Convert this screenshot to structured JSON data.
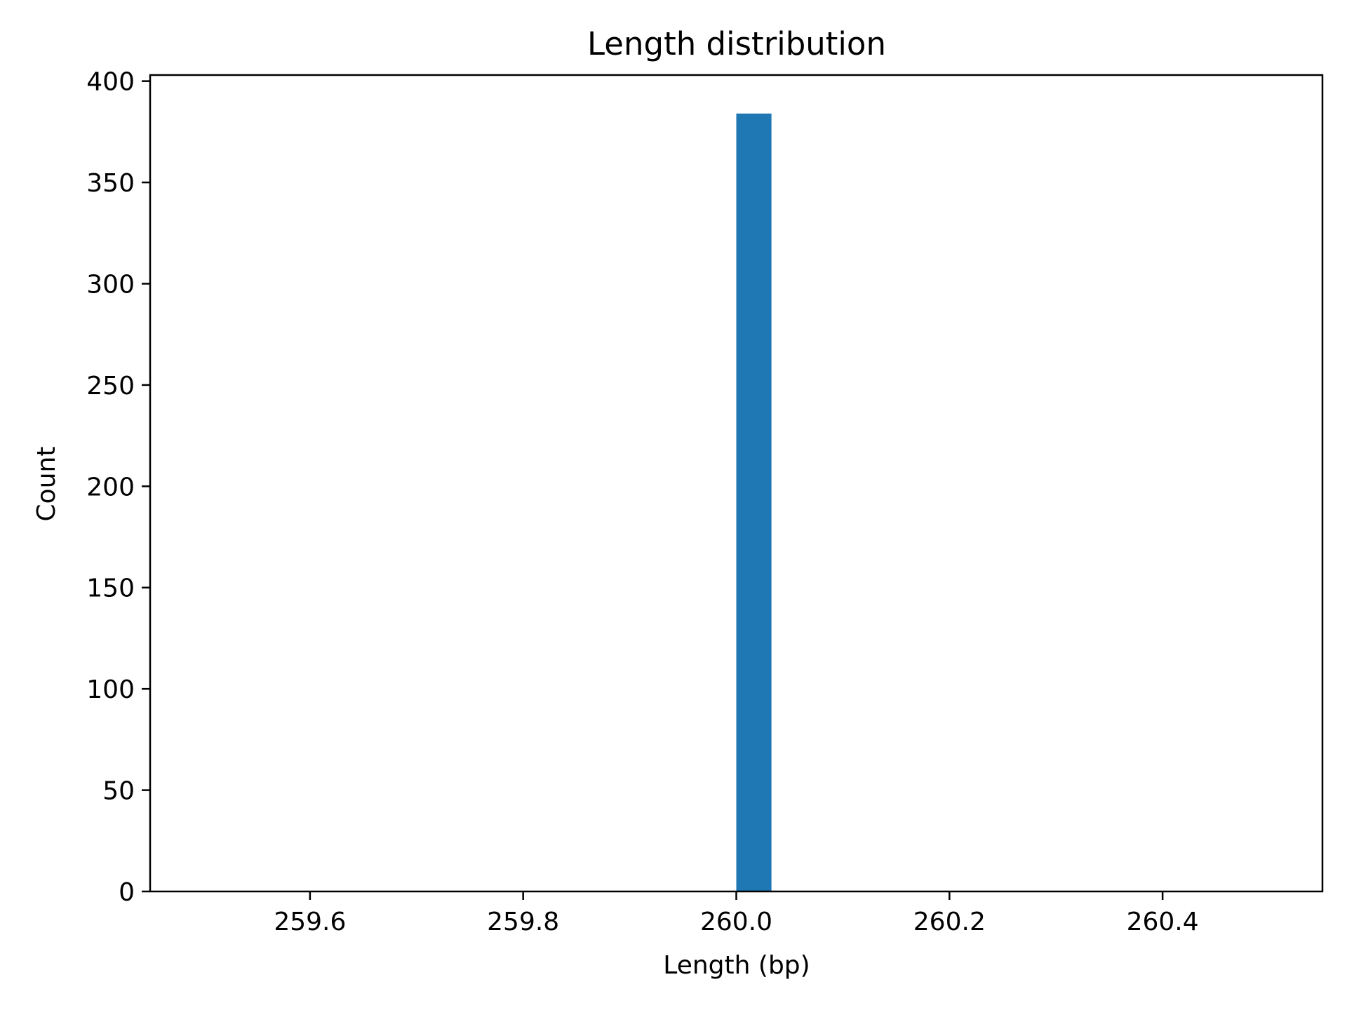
{
  "chart_data": {
    "type": "bar",
    "title": "Length distribution",
    "xlabel": "Length (bp)",
    "ylabel": "Count",
    "xlim": [
      259.45,
      260.55
    ],
    "ylim": [
      0,
      403
    ],
    "x_ticks": [
      259.6,
      259.8,
      260.0,
      260.2,
      260.4
    ],
    "x_tick_labels": [
      "259.6",
      "259.8",
      "260.0",
      "260.2",
      "260.4"
    ],
    "y_ticks": [
      0,
      50,
      100,
      150,
      200,
      250,
      300,
      350,
      400
    ],
    "y_tick_labels": [
      "0",
      "50",
      "100",
      "150",
      "200",
      "250",
      "300",
      "350",
      "400"
    ],
    "bins": [
      {
        "x_start": 260.0,
        "x_end": 260.033,
        "count": 384
      }
    ],
    "bar_color": "#1f77b4",
    "grid": false,
    "legend": "none"
  }
}
